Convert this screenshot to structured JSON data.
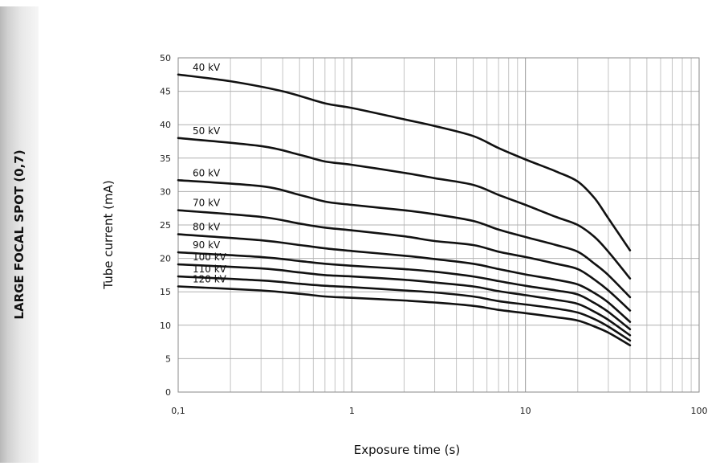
{
  "side_panel": {
    "label": "LARGE FOCAL SPOT (0,7)"
  },
  "chart_data": {
    "type": "line",
    "title": "",
    "xlabel": "Exposure time (s)",
    "ylabel": "Tube current (mA)",
    "xscale": "log",
    "xlim": [
      0.1,
      100
    ],
    "ylim": [
      0,
      50
    ],
    "xticks": [
      0.1,
      1,
      10,
      100
    ],
    "xtick_labels": [
      "0,1",
      "1",
      "10",
      "100"
    ],
    "yticks": [
      0,
      5,
      10,
      15,
      20,
      25,
      30,
      35,
      40,
      45,
      50
    ],
    "grid": true,
    "series": [
      {
        "name": "40 kV",
        "x": [
          0.1,
          0.2,
          0.4,
          0.7,
          1,
          2,
          3,
          5,
          7,
          10,
          15,
          20,
          25,
          30,
          40
        ],
        "y": [
          47.5,
          46.5,
          45,
          43.2,
          42.5,
          40.8,
          39.8,
          38.3,
          36.5,
          34.8,
          33,
          31.5,
          29,
          26,
          21.2
        ]
      },
      {
        "name": "50 kV",
        "x": [
          0.1,
          0.3,
          0.5,
          0.7,
          1,
          2,
          3,
          5,
          7,
          10,
          15,
          20,
          25,
          30,
          40
        ],
        "y": [
          38,
          36.8,
          35.5,
          34.5,
          34,
          32.8,
          32,
          31,
          29.5,
          28,
          26.2,
          25,
          23.2,
          21,
          17
        ]
      },
      {
        "name": "60 kV",
        "x": [
          0.1,
          0.3,
          0.5,
          0.7,
          1,
          2,
          3,
          5,
          7,
          10,
          15,
          20,
          25,
          30,
          40
        ],
        "y": [
          31.7,
          30.8,
          29.5,
          28.5,
          28,
          27.2,
          26.6,
          25.6,
          24.3,
          23.2,
          22,
          21,
          19.2,
          17.5,
          14.2
        ]
      },
      {
        "name": "70 kV",
        "x": [
          0.1,
          0.3,
          0.5,
          0.7,
          1,
          2,
          3,
          5,
          7,
          10,
          15,
          20,
          25,
          30,
          40
        ],
        "y": [
          27.2,
          26.2,
          25.2,
          24.6,
          24.2,
          23.3,
          22.6,
          22,
          21,
          20.2,
          19.2,
          18.4,
          16.8,
          15.2,
          12.2
        ]
      },
      {
        "name": "80 kV",
        "x": [
          0.1,
          0.3,
          0.5,
          0.7,
          1,
          2,
          3,
          5,
          7,
          10,
          15,
          20,
          25,
          30,
          40
        ],
        "y": [
          23.6,
          22.7,
          22,
          21.5,
          21.1,
          20.4,
          19.9,
          19.2,
          18.4,
          17.6,
          16.8,
          16.1,
          14.8,
          13.4,
          10.5
        ]
      },
      {
        "name": "90 kV",
        "x": [
          0.1,
          0.3,
          0.5,
          0.7,
          1,
          2,
          3,
          5,
          7,
          10,
          15,
          20,
          25,
          30,
          40
        ],
        "y": [
          20.9,
          20.2,
          19.6,
          19.2,
          18.9,
          18.4,
          18,
          17.3,
          16.6,
          15.9,
          15.2,
          14.6,
          13.3,
          12,
          9.4
        ]
      },
      {
        "name": "100 kV",
        "x": [
          0.1,
          0.3,
          0.5,
          0.7,
          1,
          2,
          3,
          5,
          7,
          10,
          15,
          20,
          25,
          30,
          40
        ],
        "y": [
          19.1,
          18.5,
          17.9,
          17.5,
          17.3,
          16.8,
          16.4,
          15.8,
          15.1,
          14.5,
          13.8,
          13.2,
          12,
          10.8,
          8.5
        ]
      },
      {
        "name": "110 kV",
        "x": [
          0.1,
          0.3,
          0.5,
          0.7,
          1,
          2,
          3,
          5,
          7,
          10,
          15,
          20,
          25,
          30,
          40
        ],
        "y": [
          17.3,
          16.7,
          16.2,
          15.9,
          15.7,
          15.2,
          14.9,
          14.3,
          13.6,
          13.1,
          12.5,
          11.9,
          10.9,
          9.8,
          7.7
        ]
      },
      {
        "name": "120 kV",
        "x": [
          0.1,
          0.3,
          0.5,
          0.7,
          1,
          2,
          3,
          5,
          7,
          10,
          15,
          20,
          25,
          30,
          40
        ],
        "y": [
          15.8,
          15.2,
          14.7,
          14.3,
          14.1,
          13.7,
          13.4,
          12.9,
          12.3,
          11.8,
          11.2,
          10.7,
          9.8,
          8.9,
          7
        ]
      }
    ]
  }
}
